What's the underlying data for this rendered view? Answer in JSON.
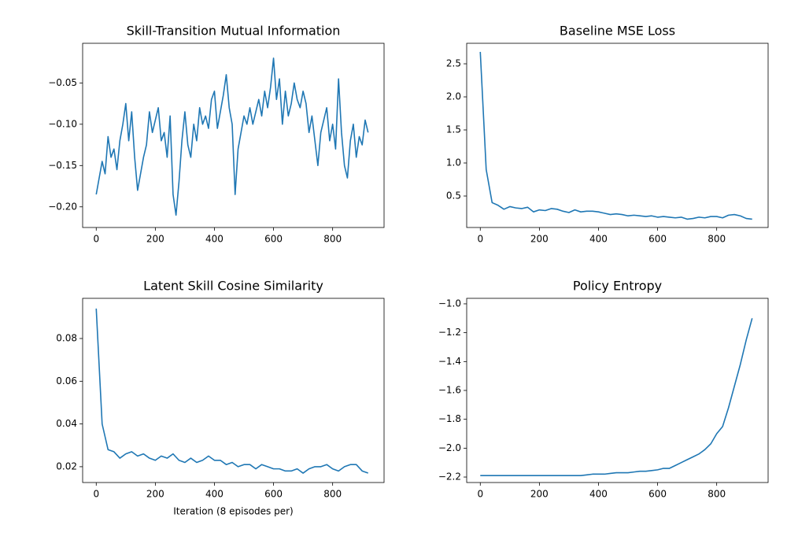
{
  "chart_data": [
    {
      "type": "line",
      "title": "Skill-Transition Mutual Information",
      "color": "#1f77b4",
      "x": [
        0,
        10,
        20,
        30,
        40,
        50,
        60,
        70,
        80,
        90,
        100,
        110,
        120,
        130,
        140,
        150,
        160,
        170,
        180,
        190,
        200,
        210,
        220,
        230,
        240,
        250,
        260,
        270,
        280,
        290,
        300,
        310,
        320,
        330,
        340,
        350,
        360,
        370,
        380,
        390,
        400,
        410,
        420,
        430,
        440,
        450,
        460,
        470,
        480,
        490,
        500,
        510,
        520,
        530,
        540,
        550,
        560,
        570,
        580,
        590,
        600,
        610,
        620,
        630,
        640,
        650,
        660,
        670,
        680,
        690,
        700,
        710,
        720,
        730,
        740,
        750,
        760,
        770,
        780,
        790,
        800,
        810,
        820,
        830,
        840,
        850,
        860,
        870,
        880,
        890,
        900,
        910,
        920
      ],
      "values": [
        -0.185,
        -0.165,
        -0.145,
        -0.16,
        -0.115,
        -0.14,
        -0.13,
        -0.155,
        -0.12,
        -0.1,
        -0.075,
        -0.12,
        -0.085,
        -0.14,
        -0.18,
        -0.16,
        -0.14,
        -0.125,
        -0.085,
        -0.11,
        -0.095,
        -0.08,
        -0.12,
        -0.11,
        -0.14,
        -0.09,
        -0.185,
        -0.21,
        -0.17,
        -0.12,
        -0.085,
        -0.125,
        -0.14,
        -0.1,
        -0.12,
        -0.08,
        -0.1,
        -0.09,
        -0.105,
        -0.07,
        -0.06,
        -0.105,
        -0.085,
        -0.065,
        -0.04,
        -0.08,
        -0.1,
        -0.185,
        -0.13,
        -0.11,
        -0.09,
        -0.1,
        -0.08,
        -0.1,
        -0.085,
        -0.07,
        -0.09,
        -0.06,
        -0.08,
        -0.055,
        -0.02,
        -0.07,
        -0.045,
        -0.1,
        -0.06,
        -0.09,
        -0.075,
        -0.05,
        -0.07,
        -0.08,
        -0.06,
        -0.075,
        -0.11,
        -0.09,
        -0.12,
        -0.15,
        -0.11,
        -0.095,
        -0.08,
        -0.12,
        -0.1,
        -0.13,
        -0.045,
        -0.11,
        -0.15,
        -0.165,
        -0.12,
        -0.1,
        -0.14,
        -0.115,
        -0.125,
        -0.095,
        -0.11
      ],
      "xlim": [
        -46,
        974
      ],
      "ylim": [
        -0.225,
        -0.002
      ],
      "xticks": [
        0,
        200,
        400,
        600,
        800
      ],
      "yticks": [
        {
          "value": -0.2,
          "label": "−0.20"
        },
        {
          "value": -0.15,
          "label": "−0.15"
        },
        {
          "value": -0.1,
          "label": "−0.10"
        },
        {
          "value": -0.05,
          "label": "−0.05"
        }
      ]
    },
    {
      "type": "line",
      "title": "Baseline MSE Loss",
      "color": "#1f77b4",
      "x": [
        0,
        20,
        40,
        60,
        80,
        100,
        120,
        140,
        160,
        180,
        200,
        220,
        240,
        260,
        280,
        300,
        320,
        340,
        360,
        380,
        400,
        420,
        440,
        460,
        480,
        500,
        520,
        540,
        560,
        580,
        600,
        620,
        640,
        660,
        680,
        700,
        720,
        740,
        760,
        780,
        800,
        820,
        840,
        860,
        880,
        900,
        920
      ],
      "values": [
        2.68,
        0.9,
        0.4,
        0.36,
        0.3,
        0.34,
        0.32,
        0.31,
        0.33,
        0.26,
        0.29,
        0.28,
        0.31,
        0.3,
        0.27,
        0.25,
        0.29,
        0.26,
        0.27,
        0.27,
        0.26,
        0.24,
        0.22,
        0.23,
        0.22,
        0.2,
        0.21,
        0.2,
        0.19,
        0.2,
        0.18,
        0.19,
        0.18,
        0.17,
        0.18,
        0.15,
        0.16,
        0.18,
        0.17,
        0.19,
        0.19,
        0.17,
        0.21,
        0.22,
        0.2,
        0.16,
        0.15
      ],
      "xlim": [
        -46,
        974
      ],
      "ylim": [
        0.024,
        2.81
      ],
      "xticks": [
        0,
        200,
        400,
        600,
        800
      ],
      "yticks": [
        0.5,
        {
          "value": 1,
          "label": "1.0"
        },
        1.5,
        {
          "value": 2,
          "label": "2.0"
        },
        2.5
      ]
    },
    {
      "type": "line",
      "title": "Latent Skill Cosine Similarity",
      "xlabel": "Iteration (8 episodes per)",
      "color": "#1f77b4",
      "x": [
        0,
        20,
        40,
        60,
        80,
        100,
        120,
        140,
        160,
        180,
        200,
        220,
        240,
        260,
        280,
        300,
        320,
        340,
        360,
        380,
        400,
        420,
        440,
        460,
        480,
        500,
        520,
        540,
        560,
        580,
        600,
        620,
        640,
        660,
        680,
        700,
        720,
        740,
        760,
        780,
        800,
        820,
        840,
        860,
        880,
        900,
        920
      ],
      "values": [
        0.094,
        0.04,
        0.028,
        0.027,
        0.024,
        0.026,
        0.027,
        0.025,
        0.026,
        0.024,
        0.023,
        0.025,
        0.024,
        0.026,
        0.023,
        0.022,
        0.024,
        0.022,
        0.023,
        0.025,
        0.023,
        0.023,
        0.021,
        0.022,
        0.02,
        0.021,
        0.021,
        0.019,
        0.021,
        0.02,
        0.019,
        0.019,
        0.018,
        0.018,
        0.019,
        0.017,
        0.019,
        0.02,
        0.02,
        0.021,
        0.019,
        0.018,
        0.02,
        0.021,
        0.021,
        0.018,
        0.017
      ],
      "xlim": [
        -46,
        974
      ],
      "ylim": [
        0.0126,
        0.0988
      ],
      "xticks": [
        0,
        200,
        400,
        600,
        800
      ],
      "yticks": [
        0.02,
        0.04,
        0.06,
        0.08
      ]
    },
    {
      "type": "line",
      "title": "Policy Entropy",
      "color": "#1f77b4",
      "x": [
        0,
        20,
        40,
        60,
        80,
        100,
        120,
        140,
        160,
        180,
        200,
        220,
        240,
        260,
        280,
        300,
        320,
        340,
        360,
        380,
        400,
        420,
        440,
        460,
        480,
        500,
        520,
        540,
        560,
        580,
        600,
        620,
        640,
        660,
        680,
        700,
        720,
        740,
        760,
        780,
        800,
        820,
        840,
        860,
        880,
        900,
        920
      ],
      "values": [
        -2.19,
        -2.19,
        -2.19,
        -2.19,
        -2.19,
        -2.19,
        -2.19,
        -2.19,
        -2.19,
        -2.19,
        -2.19,
        -2.19,
        -2.19,
        -2.19,
        -2.19,
        -2.19,
        -2.19,
        -2.19,
        -2.185,
        -2.18,
        -2.18,
        -2.18,
        -2.175,
        -2.17,
        -2.17,
        -2.17,
        -2.165,
        -2.16,
        -2.16,
        -2.155,
        -2.15,
        -2.14,
        -2.14,
        -2.12,
        -2.1,
        -2.08,
        -2.06,
        -2.04,
        -2.01,
        -1.97,
        -1.9,
        -1.85,
        -1.72,
        -1.57,
        -1.42,
        -1.25,
        -1.1
      ],
      "xlim": [
        -46,
        974
      ],
      "ylim": [
        -2.238,
        -0.962
      ],
      "xticks": [
        0,
        200,
        400,
        600,
        800
      ],
      "yticks": [
        {
          "value": -2.2,
          "label": "−2.2"
        },
        {
          "value": -2,
          "label": "−2.0"
        },
        {
          "value": -1.8,
          "label": "−1.8"
        },
        {
          "value": -1.6,
          "label": "−1.6"
        },
        {
          "value": -1.4,
          "label": "−1.4"
        },
        {
          "value": -1.2,
          "label": "−1.2"
        },
        {
          "value": -1,
          "label": "−1.0"
        }
      ]
    }
  ]
}
